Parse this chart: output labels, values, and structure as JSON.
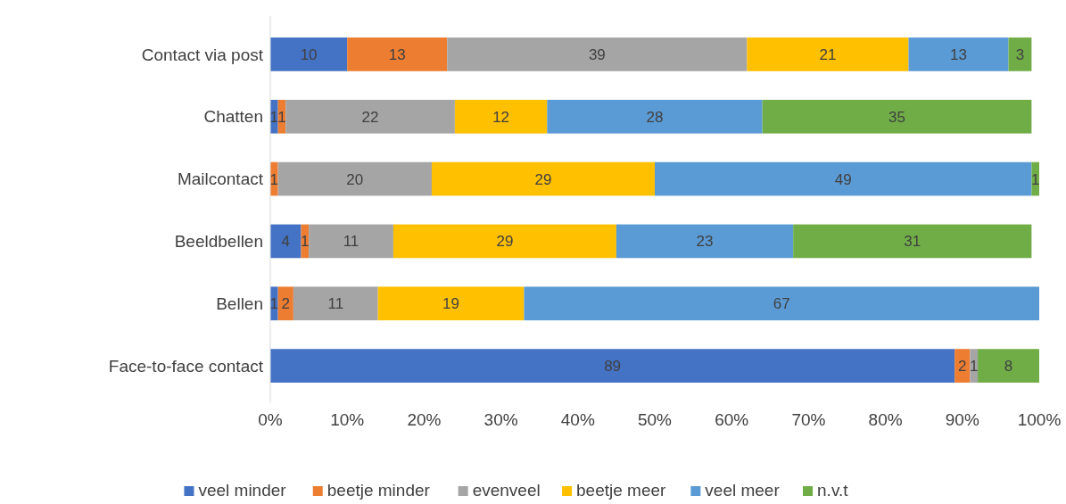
{
  "chart_data": {
    "type": "bar",
    "orientation": "horizontal",
    "stacked": true,
    "data_labels": true,
    "legend": "bottom",
    "grid": false,
    "categories": [
      "Contact via post",
      "Chatten",
      "Mailcontact",
      "Beeldbellen",
      "Bellen",
      "Face-to-face contact"
    ],
    "xlim": [
      0,
      100
    ],
    "xticks": [
      {
        "value": 0,
        "label": "0%"
      },
      {
        "value": 10,
        "label": "10%"
      },
      {
        "value": 20,
        "label": "20%"
      },
      {
        "value": 30,
        "label": "30%"
      },
      {
        "value": 40,
        "label": "40%"
      },
      {
        "value": 50,
        "label": "50%"
      },
      {
        "value": 60,
        "label": "60%"
      },
      {
        "value": 70,
        "label": "70%"
      },
      {
        "value": 80,
        "label": "80%"
      },
      {
        "value": 90,
        "label": "90%"
      },
      {
        "value": 100,
        "label": "100%"
      }
    ],
    "series": [
      {
        "name": "veel minder",
        "color": "#4472c4",
        "values": [
          10,
          1,
          null,
          4,
          1,
          89
        ]
      },
      {
        "name": "beetje minder",
        "color": "#ed7d31",
        "values": [
          13,
          1,
          1,
          1,
          2,
          2
        ]
      },
      {
        "name": "evenveel",
        "color": "#a5a5a5",
        "values": [
          39,
          22,
          20,
          11,
          11,
          1
        ]
      },
      {
        "name": "beetje meer",
        "color": "#ffc000",
        "values": [
          21,
          12,
          29,
          29,
          19,
          null
        ]
      },
      {
        "name": "veel meer",
        "color": "#5b9bd5",
        "values": [
          13,
          28,
          49,
          23,
          67,
          null
        ]
      },
      {
        "name": "n.v.t",
        "color": "#70ad47",
        "values": [
          3,
          35,
          1,
          31,
          null,
          8
        ]
      }
    ]
  }
}
